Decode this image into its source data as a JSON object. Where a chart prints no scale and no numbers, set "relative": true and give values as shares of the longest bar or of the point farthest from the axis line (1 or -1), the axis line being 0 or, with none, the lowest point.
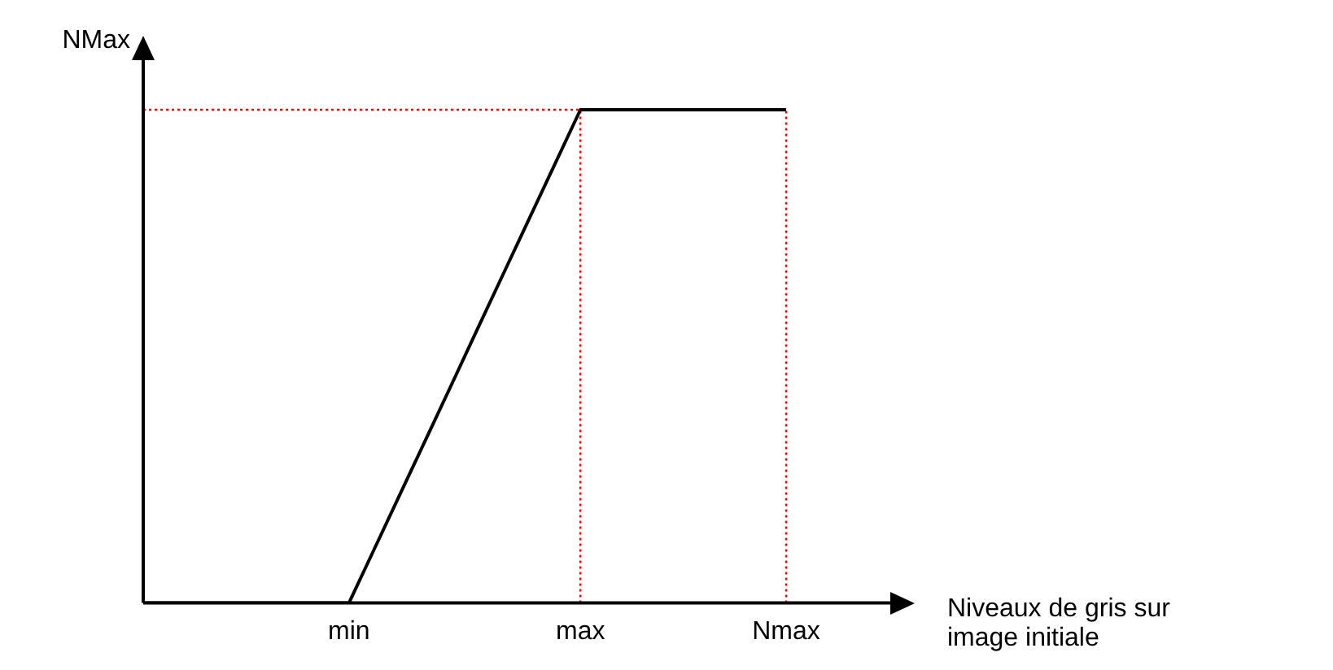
{
  "chart_data": {
    "type": "line",
    "relative": true,
    "ylabel": "NMax",
    "xlabel": "Niveaux de gris sur image initiale",
    "categories": [
      null,
      null,
      null,
      null,
      null,
      null,
      null,
      null,
      "min",
      null,
      null,
      null,
      null,
      null,
      null,
      null,
      null,
      "max",
      null,
      null,
      null,
      null,
      null,
      null,
      null,
      "Nmax",
      null,
      null,
      null,
      null,
      null
    ],
    "series": [
      {
        "color": "#000000",
        "values": [
          0,
          0,
          0,
          0,
          0,
          0,
          0,
          0,
          0,
          0.111,
          0.222,
          0.333,
          0.444,
          0.556,
          0.667,
          0.778,
          0.889,
          1,
          1,
          1,
          1,
          1,
          1,
          1,
          1,
          1,
          null,
          null,
          null,
          null,
          null
        ]
      }
    ],
    "ref_lines": [
      {
        "axis": "y",
        "value": 1,
        "color": "#ff0000",
        "line_style": "dotted"
      },
      {
        "axis": "x",
        "value": "max",
        "color": "#ff0000",
        "line_style": "dotted"
      },
      {
        "axis": "x",
        "value": "Nmax",
        "color": "#ff0000",
        "line_style": "dotted"
      }
    ],
    "grid": false,
    "legend": false,
    "marker": "none",
    "line_style": "solid"
  }
}
